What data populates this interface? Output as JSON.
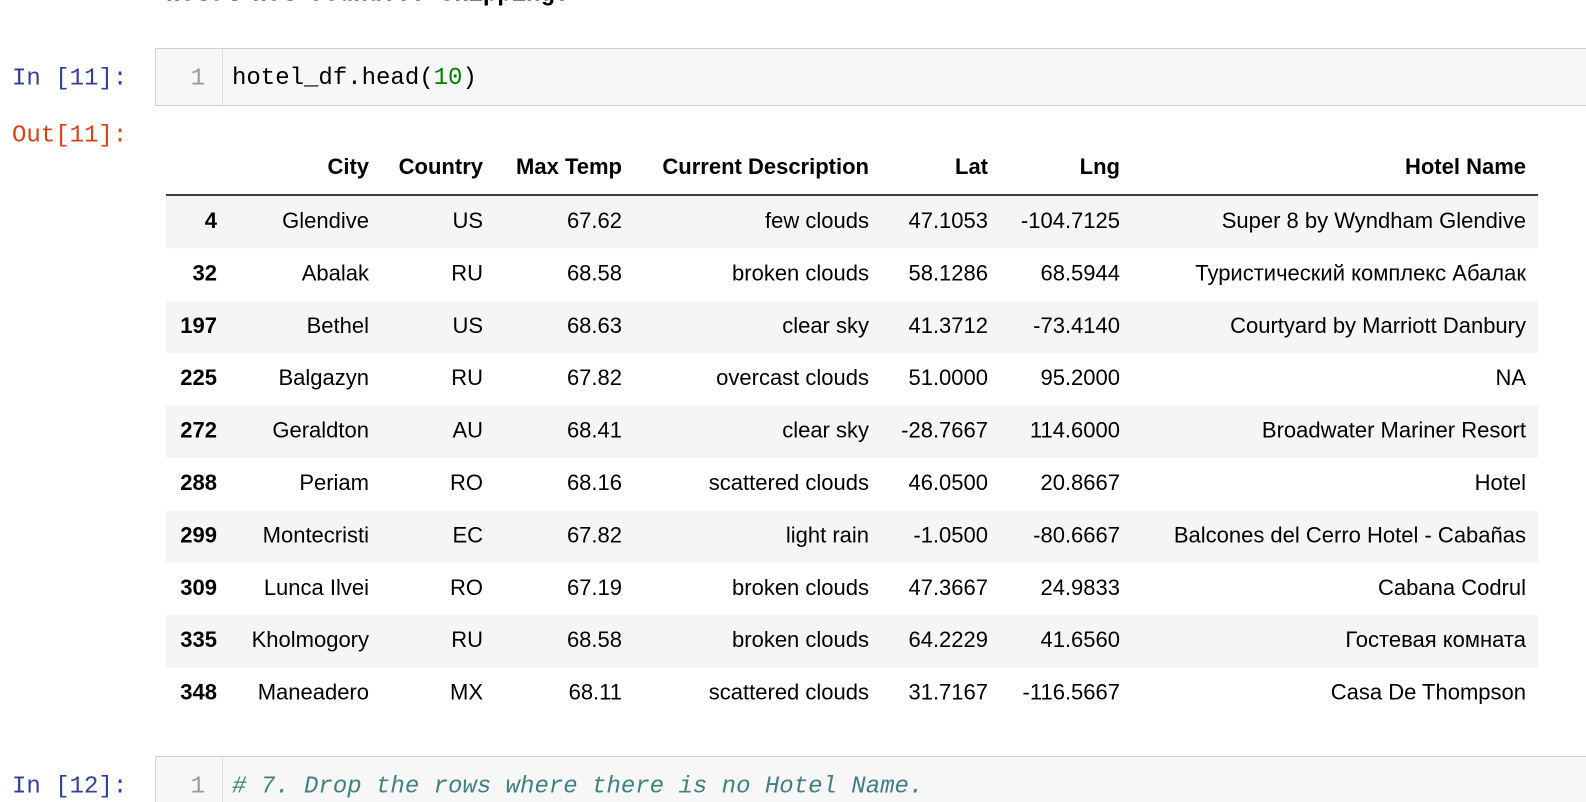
{
  "previous_output": "Hotel not found... skipping.",
  "cells": [
    {
      "in_prompt": "In [11]:",
      "line_number": "1",
      "code": [
        "hotel_df.head(",
        "10",
        ")"
      ],
      "out_prompt": "Out[11]:"
    },
    {
      "in_prompt": "In [12]:",
      "line_number": "1",
      "code": [
        "# 7. Drop the rows where there is no Hotel Name."
      ]
    }
  ],
  "table": {
    "columns": [
      "City",
      "Country",
      "Max Temp",
      "Current Description",
      "Lat",
      "Lng",
      "Hotel Name"
    ],
    "rows": [
      [
        "4",
        "Glendive",
        "US",
        "67.62",
        "few clouds",
        "47.1053",
        "-104.7125",
        "Super 8 by Wyndham Glendive"
      ],
      [
        "32",
        "Abalak",
        "RU",
        "68.58",
        "broken clouds",
        "58.1286",
        "68.5944",
        "Туристический комплекс Абалак"
      ],
      [
        "197",
        "Bethel",
        "US",
        "68.63",
        "clear sky",
        "41.3712",
        "-73.4140",
        "Courtyard by Marriott Danbury"
      ],
      [
        "225",
        "Balgazyn",
        "RU",
        "67.82",
        "overcast clouds",
        "51.0000",
        "95.2000",
        "NA"
      ],
      [
        "272",
        "Geraldton",
        "AU",
        "68.41",
        "clear sky",
        "-28.7667",
        "114.6000",
        "Broadwater Mariner Resort"
      ],
      [
        "288",
        "Periam",
        "RO",
        "68.16",
        "scattered clouds",
        "46.0500",
        "20.8667",
        "Hotel"
      ],
      [
        "299",
        "Montecristi",
        "EC",
        "67.82",
        "light rain",
        "-1.0500",
        "-80.6667",
        "Balcones del Cerro Hotel - Cabañas"
      ],
      [
        "309",
        "Lunca Ilvei",
        "RO",
        "67.19",
        "broken clouds",
        "47.3667",
        "24.9833",
        "Cabana Codrul"
      ],
      [
        "335",
        "Kholmogory",
        "RU",
        "68.58",
        "broken clouds",
        "64.2229",
        "41.6560",
        "Гостевая комната"
      ],
      [
        "348",
        "Maneadero",
        "MX",
        "68.11",
        "scattered clouds",
        "31.7167",
        "-116.5667",
        "Casa De Thompson"
      ]
    ]
  }
}
